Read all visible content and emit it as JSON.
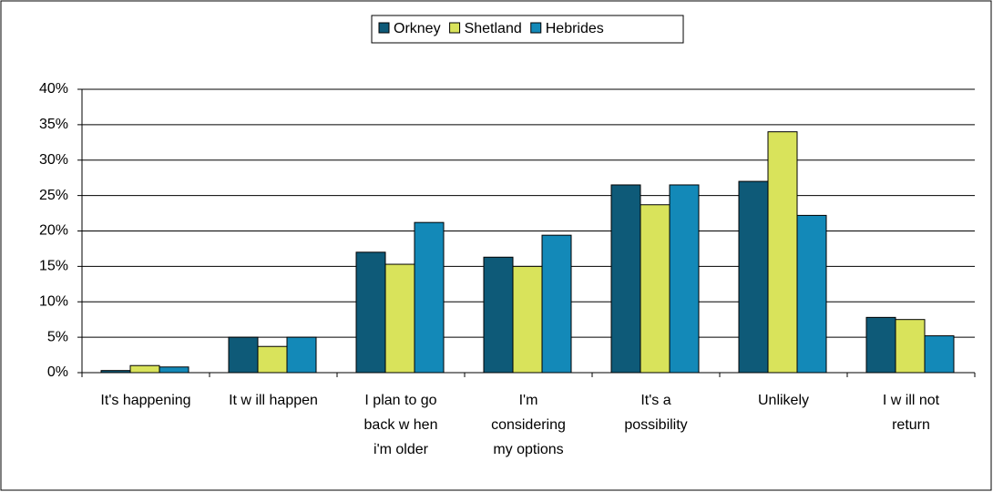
{
  "chart_data": {
    "type": "bar",
    "categories": [
      [
        "It's happening"
      ],
      [
        "It w ill happen"
      ],
      [
        "I plan to go",
        "back w hen",
        "i'm older"
      ],
      [
        "I'm",
        "considering",
        "my options"
      ],
      [
        "It's a",
        "possibility"
      ],
      [
        "Unlikely"
      ],
      [
        "I w ill not",
        "return"
      ]
    ],
    "series": [
      {
        "name": "Orkney",
        "color": "#0e5a78",
        "values": [
          0.3,
          5,
          17,
          16.3,
          26.5,
          27,
          7.8
        ]
      },
      {
        "name": "Shetland",
        "color": "#d9e35b",
        "values": [
          1,
          3.7,
          15.3,
          15,
          23.7,
          34,
          7.5
        ]
      },
      {
        "name": "Hebrides",
        "color": "#1389b8",
        "values": [
          0.8,
          5,
          21.2,
          19.4,
          26.5,
          22.2,
          5.2
        ]
      }
    ],
    "ylim": [
      0,
      40
    ],
    "yticks": [
      {
        "value": 0,
        "label": "0%"
      },
      {
        "value": 5,
        "label": "5%"
      },
      {
        "value": 10,
        "label": "10%"
      },
      {
        "value": 15,
        "label": "15%"
      },
      {
        "value": 20,
        "label": "20%"
      },
      {
        "value": 25,
        "label": "25%"
      },
      {
        "value": 30,
        "label": "30%"
      },
      {
        "value": 35,
        "label": "35%"
      },
      {
        "value": 40,
        "label": "40%"
      }
    ],
    "grid": true,
    "legend": "top"
  }
}
